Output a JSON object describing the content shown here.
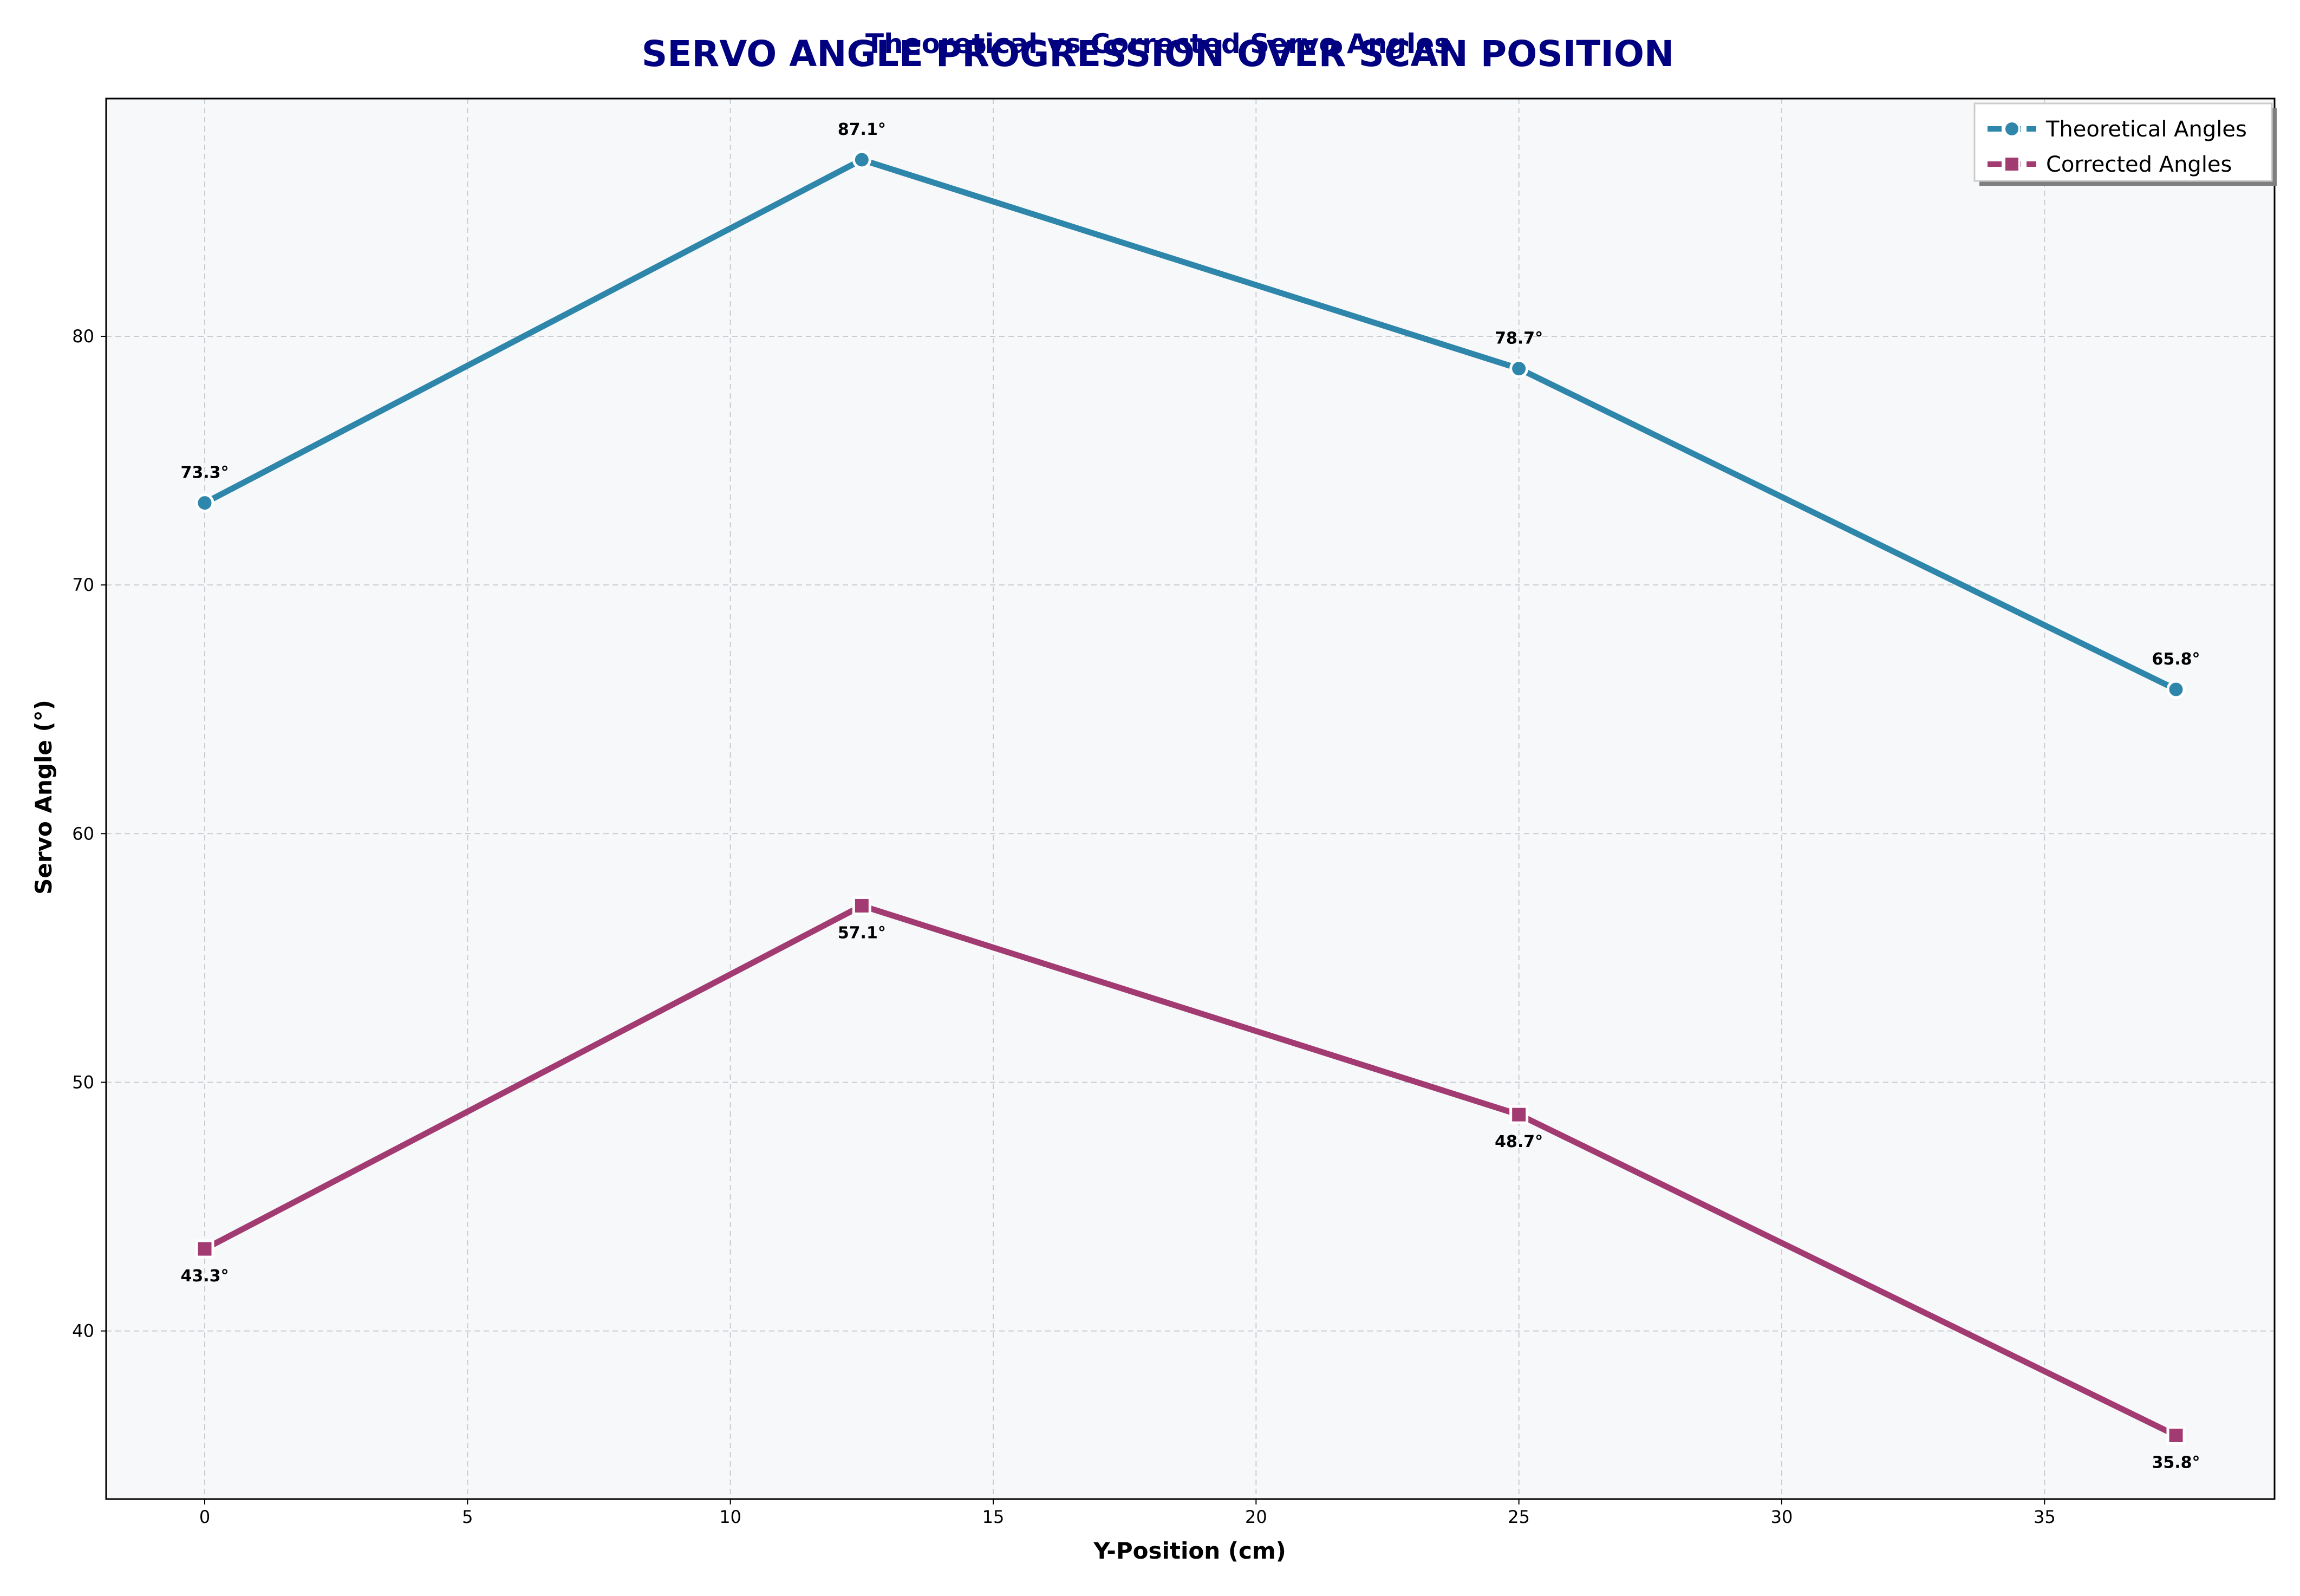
{
  "chart_data": {
    "type": "line",
    "title": "SERVO ANGLE PROGRESSION OVER SCAN POSITION",
    "subtitle": "Theoretical vs Corrected Servo Angles",
    "xlabel": "Y-Position (cm)",
    "ylabel": "Servo Angle (°)",
    "x": [
      0,
      12.5,
      25,
      37.5
    ],
    "xlim": [
      -1.875,
      39.375
    ],
    "ylim": [
      33.24,
      89.56
    ],
    "xticks": [
      0,
      5,
      10,
      15,
      20,
      25,
      30,
      35
    ],
    "yticks": [
      40,
      50,
      60,
      70,
      80
    ],
    "grid": true,
    "legend_position": "top-right",
    "series": [
      {
        "name": "Theoretical Angles",
        "values": [
          73.3,
          87.1,
          78.7,
          65.8
        ],
        "labels": [
          "73.3°",
          "87.1°",
          "78.7°",
          "65.8°"
        ],
        "color": "#2E86AB",
        "marker": "circle",
        "label_position": "above"
      },
      {
        "name": "Corrected Angles",
        "values": [
          43.3,
          57.1,
          48.7,
          35.8
        ],
        "labels": [
          "43.3°",
          "57.1°",
          "48.7°",
          "35.8°"
        ],
        "color": "#A23B72",
        "marker": "square",
        "label_position": "below"
      }
    ],
    "colors": {
      "plot_background": "#F7F8FA",
      "grid": "#C8CDD3",
      "title": "#000080"
    }
  }
}
